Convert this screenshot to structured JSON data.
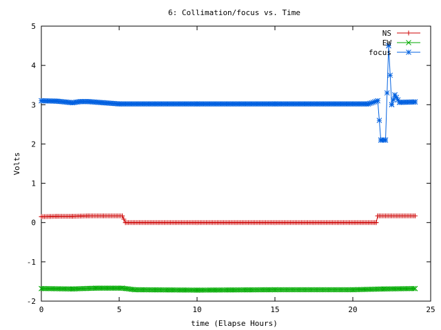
{
  "chart_data": {
    "type": "line",
    "title": "6: Collimation/focus vs. Time",
    "xlabel": "time (Elapse Hours)",
    "ylabel": "Volts",
    "xlim": [
      0,
      25
    ],
    "ylim": [
      -2,
      5
    ],
    "xticks": [
      "0",
      "5",
      "10",
      "15",
      "20",
      "25"
    ],
    "yticks": [
      "-2",
      "-1",
      "0",
      "1",
      "2",
      "3",
      "4",
      "5"
    ],
    "legend_position": "top-right",
    "grid": false,
    "series": [
      {
        "name": "NS",
        "color": "#cc0000",
        "marker": "plus",
        "points": [
          [
            0,
            0.15
          ],
          [
            1,
            0.16
          ],
          [
            2,
            0.16
          ],
          [
            3,
            0.17
          ],
          [
            4,
            0.17
          ],
          [
            5.2,
            0.17
          ],
          [
            5.4,
            0.0
          ],
          [
            10,
            0.0
          ],
          [
            15,
            0.0
          ],
          [
            21.5,
            0.0
          ],
          [
            21.6,
            0.17
          ],
          [
            24,
            0.17
          ]
        ]
      },
      {
        "name": "EW",
        "color": "#00aa00",
        "marker": "x",
        "points": [
          [
            0,
            -1.68
          ],
          [
            2,
            -1.69
          ],
          [
            3.5,
            -1.67
          ],
          [
            5.2,
            -1.67
          ],
          [
            6,
            -1.71
          ],
          [
            10,
            -1.72
          ],
          [
            15,
            -1.71
          ],
          [
            20,
            -1.71
          ],
          [
            22,
            -1.69
          ],
          [
            24,
            -1.68
          ]
        ]
      },
      {
        "name": "focus",
        "color": "#0060e0",
        "marker": "star",
        "points": [
          [
            0,
            3.1
          ],
          [
            1,
            3.09
          ],
          [
            2,
            3.05
          ],
          [
            2.5,
            3.08
          ],
          [
            3,
            3.08
          ],
          [
            4,
            3.05
          ],
          [
            5,
            3.02
          ],
          [
            10,
            3.02
          ],
          [
            15,
            3.02
          ],
          [
            21,
            3.02
          ],
          [
            21.6,
            3.1
          ],
          [
            21.8,
            2.1
          ],
          [
            22.1,
            2.1
          ],
          [
            22.3,
            4.5
          ],
          [
            22.5,
            3.0
          ],
          [
            22.7,
            3.25
          ],
          [
            23,
            3.06
          ],
          [
            24,
            3.07
          ]
        ]
      }
    ]
  }
}
